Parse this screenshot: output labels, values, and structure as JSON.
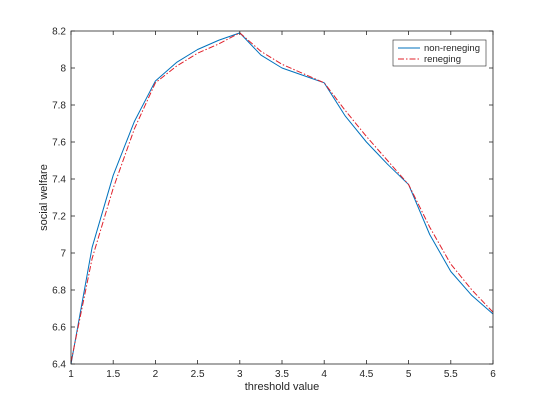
{
  "chart_data": {
    "type": "line",
    "title": "",
    "xlabel": "threshold value",
    "ylabel": "social welfare",
    "xlim": [
      1,
      6
    ],
    "ylim": [
      6.4,
      8.2
    ],
    "xticks": [
      1,
      1.5,
      2,
      2.5,
      3,
      3.5,
      4,
      4.5,
      5,
      5.5,
      6
    ],
    "yticks": [
      6.4,
      6.6,
      6.8,
      7,
      7.2,
      7.4,
      7.6,
      7.8,
      8,
      8.2
    ],
    "grid": false,
    "legend_position": "top-right",
    "series": [
      {
        "name": "non-reneging",
        "color": "#0072BD",
        "style": "solid",
        "x": [
          1,
          1.25,
          1.5,
          1.75,
          2,
          2.25,
          2.5,
          2.75,
          3,
          3.25,
          3.5,
          3.75,
          4,
          4.25,
          4.5,
          4.75,
          5,
          5.25,
          5.5,
          5.75,
          6
        ],
        "y": [
          6.4,
          7.03,
          7.42,
          7.71,
          7.93,
          8.03,
          8.1,
          8.15,
          8.19,
          8.07,
          8.0,
          7.96,
          7.92,
          7.74,
          7.6,
          7.48,
          7.37,
          7.1,
          6.9,
          6.77,
          6.67
        ]
      },
      {
        "name": "reneging",
        "color": "#E0202A",
        "style": "dashdot",
        "x": [
          1,
          1.25,
          1.5,
          1.75,
          2,
          2.25,
          2.5,
          2.75,
          3,
          3.25,
          3.5,
          3.75,
          4,
          4.25,
          4.5,
          4.75,
          5,
          5.25,
          5.5,
          5.75,
          6
        ],
        "y": [
          6.41,
          6.97,
          7.35,
          7.67,
          7.92,
          8.01,
          8.08,
          8.13,
          8.19,
          8.09,
          8.02,
          7.97,
          7.92,
          7.77,
          7.63,
          7.5,
          7.37,
          7.14,
          6.94,
          6.8,
          6.68
        ]
      }
    ]
  }
}
